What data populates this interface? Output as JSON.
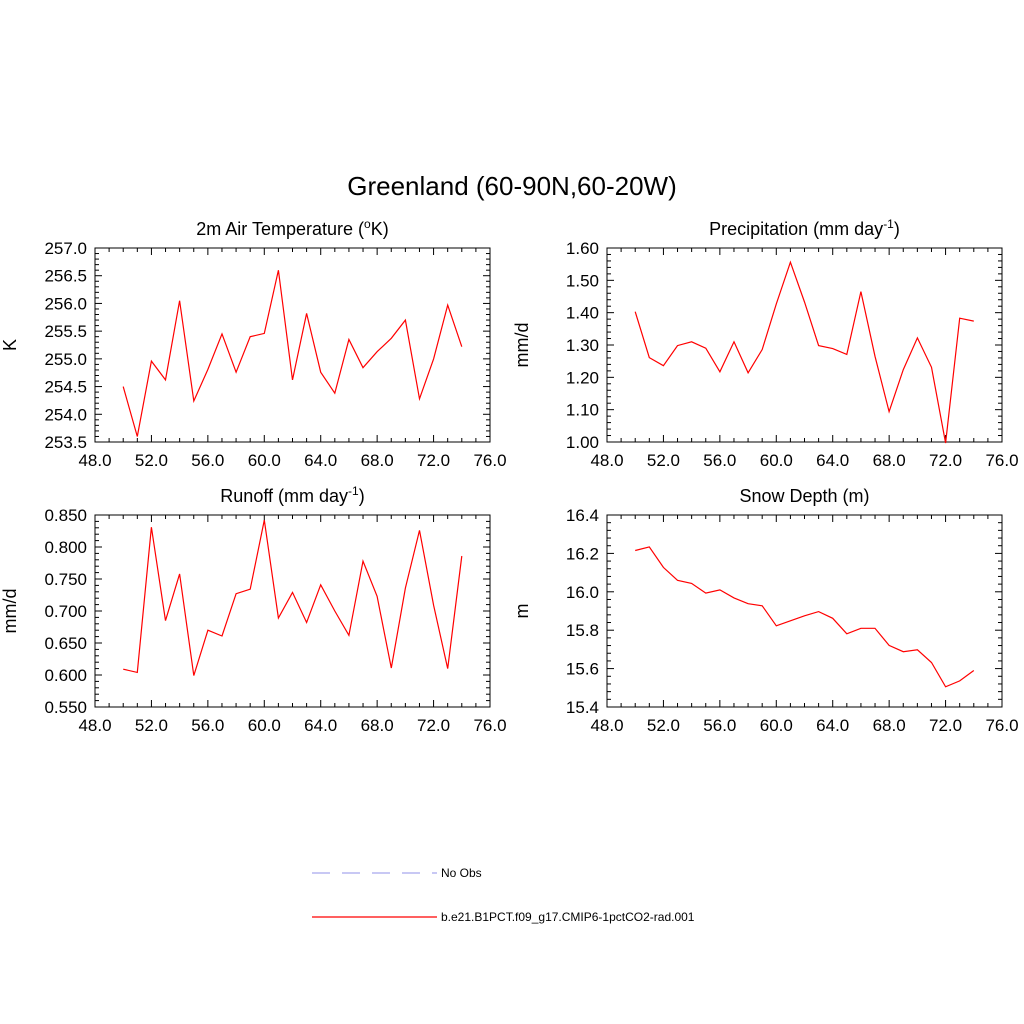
{
  "figure": {
    "title": "Greenland (60-90N,60-20W)"
  },
  "chart_data": [
    {
      "type": "line",
      "title": "2m Air Temperature (",
      "title_sup": "o",
      "title_tail": "K)",
      "xlabel": "",
      "ylabel": "K",
      "xlim": [
        48,
        76
      ],
      "ylim": [
        253.5,
        257.0
      ],
      "xticks": [
        48,
        52,
        56,
        60,
        64,
        68,
        72,
        76
      ],
      "xtick_labels": [
        "48.0",
        "52.0",
        "56.0",
        "60.0",
        "64.0",
        "68.0",
        "72.0",
        "76.0"
      ],
      "yticks": [
        253.5,
        254.0,
        254.5,
        255.0,
        255.5,
        256.0,
        256.5,
        257.0
      ],
      "ytick_labels": [
        "253.5",
        "254.0",
        "254.5",
        "255.0",
        "255.5",
        "256.0",
        "256.5",
        "257.0"
      ],
      "series": [
        {
          "color": "#ff0000",
          "x": [
            50,
            51,
            52,
            53,
            54,
            55,
            56,
            57,
            58,
            59,
            60,
            61,
            62,
            63,
            64,
            65,
            66,
            67,
            68,
            69,
            70,
            71,
            72,
            73,
            74
          ],
          "y": [
            254.5,
            253.6,
            254.96,
            254.62,
            256.05,
            254.24,
            254.81,
            255.45,
            254.76,
            255.4,
            255.46,
            256.6,
            254.62,
            255.82,
            254.76,
            254.38,
            255.35,
            254.84,
            255.13,
            255.37,
            255.7,
            254.28,
            255.0,
            255.97,
            255.22
          ]
        }
      ]
    },
    {
      "type": "line",
      "title": "Precipitation (mm day",
      "title_sup": "-1",
      "title_tail": ")",
      "xlabel": "",
      "ylabel": "mm/d",
      "xlim": [
        48,
        76
      ],
      "ylim": [
        1.0,
        1.6
      ],
      "xticks": [
        48,
        52,
        56,
        60,
        64,
        68,
        72,
        76
      ],
      "xtick_labels": [
        "48.0",
        "52.0",
        "56.0",
        "60.0",
        "64.0",
        "68.0",
        "72.0",
        "76.0"
      ],
      "yticks": [
        1.0,
        1.1,
        1.2,
        1.3,
        1.4,
        1.5,
        1.6
      ],
      "ytick_labels": [
        "1.00",
        "1.10",
        "1.20",
        "1.30",
        "1.40",
        "1.50",
        "1.60"
      ],
      "series": [
        {
          "color": "#ff0000",
          "x": [
            50,
            51,
            52,
            53,
            54,
            55,
            56,
            57,
            58,
            59,
            60,
            61,
            62,
            63,
            64,
            65,
            66,
            67,
            68,
            69,
            70,
            71,
            72,
            73,
            74
          ],
          "y": [
            1.403,
            1.261,
            1.236,
            1.298,
            1.31,
            1.29,
            1.217,
            1.31,
            1.214,
            1.286,
            1.427,
            1.556,
            1.433,
            1.298,
            1.289,
            1.271,
            1.465,
            1.265,
            1.094,
            1.224,
            1.322,
            1.231,
            0.997,
            1.383,
            1.374
          ]
        }
      ]
    },
    {
      "type": "line",
      "title": "Runoff (mm day",
      "title_sup": "-1",
      "title_tail": ")",
      "xlabel": "",
      "ylabel": "mm/d",
      "xlim": [
        48,
        76
      ],
      "ylim": [
        0.55,
        0.85
      ],
      "xticks": [
        48,
        52,
        56,
        60,
        64,
        68,
        72,
        76
      ],
      "xtick_labels": [
        "48.0",
        "52.0",
        "56.0",
        "60.0",
        "64.0",
        "68.0",
        "72.0",
        "76.0"
      ],
      "yticks": [
        0.55,
        0.6,
        0.65,
        0.7,
        0.75,
        0.8,
        0.85
      ],
      "ytick_labels": [
        "0.550",
        "0.600",
        "0.650",
        "0.700",
        "0.750",
        "0.800",
        "0.850"
      ],
      "series": [
        {
          "color": "#ff0000",
          "x": [
            50,
            51,
            52,
            53,
            54,
            55,
            56,
            57,
            58,
            59,
            60,
            61,
            62,
            63,
            64,
            65,
            66,
            67,
            68,
            69,
            70,
            71,
            72,
            73,
            74
          ],
          "y": [
            0.609,
            0.604,
            0.831,
            0.685,
            0.758,
            0.599,
            0.67,
            0.661,
            0.727,
            0.734,
            0.842,
            0.689,
            0.729,
            0.682,
            0.741,
            0.7,
            0.662,
            0.778,
            0.723,
            0.611,
            0.736,
            0.826,
            0.709,
            0.61,
            0.786
          ]
        }
      ]
    },
    {
      "type": "line",
      "title": "Snow Depth (m)",
      "title_sup": "",
      "title_tail": "",
      "xlabel": "",
      "ylabel": "m",
      "xlim": [
        48,
        76
      ],
      "ylim": [
        15.4,
        16.4
      ],
      "xticks": [
        48,
        52,
        56,
        60,
        64,
        68,
        72,
        76
      ],
      "xtick_labels": [
        "48.0",
        "52.0",
        "56.0",
        "60.0",
        "64.0",
        "68.0",
        "72.0",
        "76.0"
      ],
      "yticks": [
        15.4,
        15.6,
        15.8,
        16.0,
        16.2,
        16.4
      ],
      "ytick_labels": [
        "15.4",
        "15.6",
        "15.8",
        "16.0",
        "16.2",
        "16.4"
      ],
      "series": [
        {
          "color": "#ff0000",
          "x": [
            50,
            51,
            52,
            53,
            54,
            55,
            56,
            57,
            58,
            59,
            60,
            61,
            62,
            63,
            64,
            65,
            66,
            67,
            68,
            69,
            70,
            71,
            72,
            73,
            74
          ],
          "y": [
            16.215,
            16.234,
            16.127,
            16.06,
            16.044,
            15.993,
            16.01,
            15.968,
            15.938,
            15.927,
            15.823,
            15.849,
            15.875,
            15.897,
            15.862,
            15.781,
            15.81,
            15.81,
            15.721,
            15.688,
            15.698,
            15.632,
            15.505,
            15.536,
            15.59
          ]
        }
      ]
    }
  ],
  "legend": {
    "items": [
      {
        "label": "No Obs",
        "color": "#a8a8ee",
        "dash": "dashed"
      },
      {
        "label": "b.e21.B1PCT.f09_g17.CMIP6-1pctCO2-rad.001",
        "color": "#ff0000",
        "dash": "solid"
      }
    ]
  }
}
